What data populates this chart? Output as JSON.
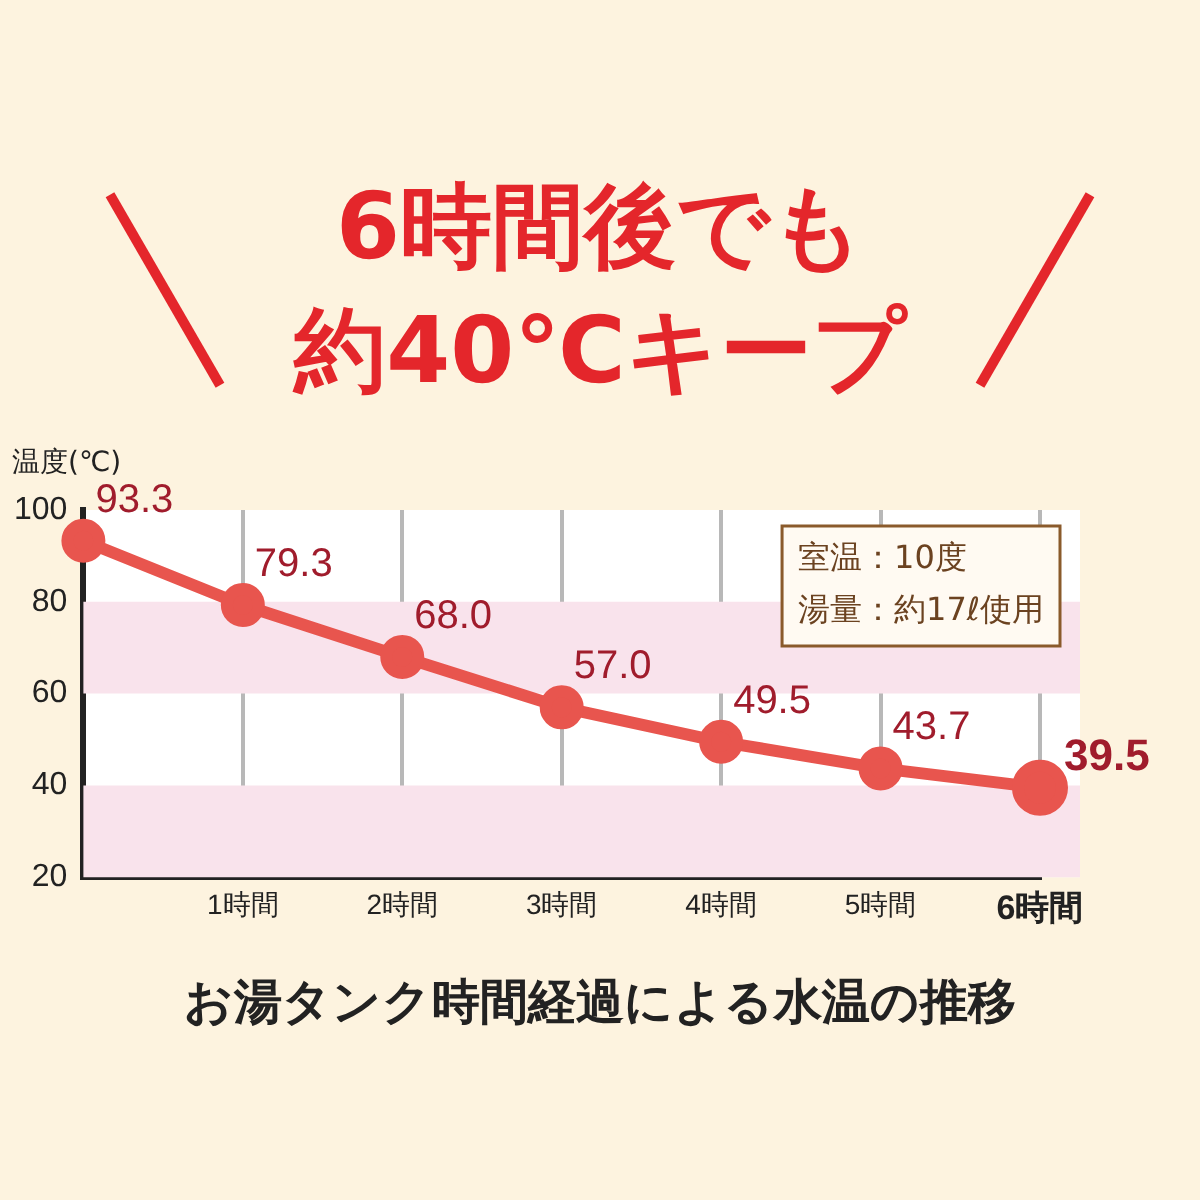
{
  "chart_data": {
    "type": "line",
    "title": "6時間後でも",
    "subtitle": "約40℃キープ",
    "xlabel": "お湯タンク時間経過による水温の推移",
    "ylabel": "温度(℃)",
    "categories": [
      null,
      "1時間",
      "2時間",
      "3時間",
      "4時間",
      "5時間",
      "6時間"
    ],
    "series": [
      {
        "color": "#e8554e",
        "values": [
          93.3,
          79.3,
          68.0,
          57.0,
          49.5,
          43.7,
          39.5
        ],
        "value_labels": [
          "93.3",
          "79.3",
          "68.0",
          "57.0",
          "49.5",
          "43.7",
          "39.5"
        ]
      }
    ],
    "ylim": [
      20,
      100
    ],
    "yticks": [
      20,
      40,
      60,
      80,
      100
    ],
    "grid": "x",
    "legend": false,
    "marker": "circle",
    "line_style": "solid",
    "bands": [
      {
        "axis": "y",
        "from": 20,
        "to": 40,
        "color": "#f9e3ec"
      },
      {
        "axis": "y",
        "from": 60,
        "to": 80,
        "color": "#f9e3ec"
      }
    ],
    "annotations": [
      "室温：10度",
      "湯量：約17ℓ使用"
    ]
  }
}
